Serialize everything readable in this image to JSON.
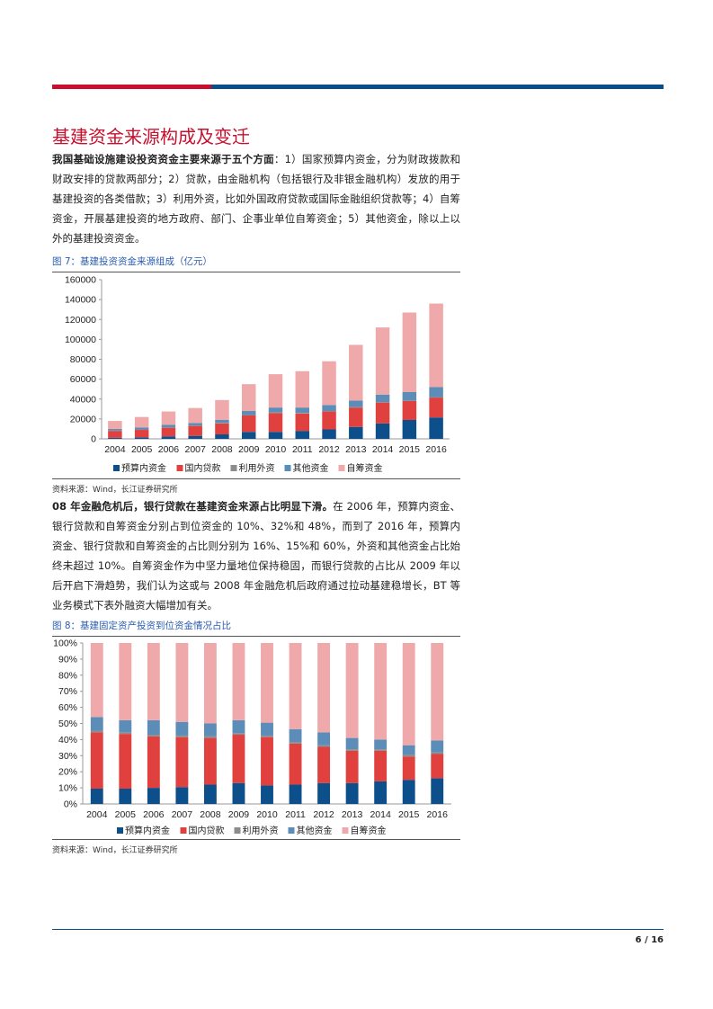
{
  "title": "基建资金来源构成及变迁",
  "para1": {
    "bold": "我国基础设施建设投资资金主要来源于五个方面",
    "rest": "：1）国家预算内资金，分为财政拨款和财政安排的贷款两部分；2）贷款，由金融机构（包括银行及非银金融机构）发放的用于基建投资的各类借款；3）利用外资，比如外国政府贷款或国际金融组织贷款等；4）自筹资金，开展基建投资的地方政府、部门、企事业单位自筹资金；5）其他资金，除以上以外的基建投资资金。"
  },
  "fig7": {
    "caption": "图 7：基建投资资金来源组成（亿元）",
    "source": "资料来源：Wind，长江证券研究所"
  },
  "para2": {
    "bold": "08 年金融危机后，银行贷款在基建资金来源占比明显下滑。",
    "rest": "在 2006 年，预算内资金、银行贷款和自筹资金分别占到位资金的 10%、32%和 48%，而到了 2016 年，预算内资金、银行贷款和自筹资金的占比则分别为 16%、15%和 60%，外资和其他资金占比始终未超过 10%。自筹资金作为中坚力量地位保持稳固，而银行贷款的占比从 2009 年以后开启下滑趋势，我们认为这或与 2008 年金融危机后政府通过拉动基建稳增长，BT 等业务模式下表外融资大幅增加有关。"
  },
  "fig8": {
    "caption": "图 8：基建固定资产投资到位资金情况占比",
    "source": "资料来源：Wind，长江证券研究所"
  },
  "page_number": "6 / 16",
  "colors": {
    "budget": "#0d4f8b",
    "loan": "#e0403e",
    "foreign": "#8c8c8c",
    "other": "#5b8db8",
    "self": "#f0a9ab"
  },
  "chart_data": [
    {
      "type": "bar",
      "stacked": true,
      "categories": [
        "2004",
        "2005",
        "2006",
        "2007",
        "2008",
        "2009",
        "2010",
        "2011",
        "2012",
        "2013",
        "2014",
        "2015",
        "2016"
      ],
      "series": [
        {
          "name": "预算内资金",
          "values": [
            1000,
            1500,
            2500,
            3000,
            4500,
            7000,
            7000,
            8000,
            9500,
            12000,
            15500,
            19000,
            21500
          ]
        },
        {
          "name": "国内贷款",
          "values": [
            7000,
            7500,
            8700,
            10000,
            11000,
            16500,
            19000,
            17500,
            18000,
            19500,
            21000,
            19000,
            20000
          ]
        },
        {
          "name": "利用外资",
          "values": [
            500,
            500,
            500,
            500,
            500,
            500,
            500,
            500,
            500,
            500,
            500,
            500,
            500
          ]
        },
        {
          "name": "其他资金",
          "values": [
            1500,
            2000,
            2500,
            2500,
            3000,
            4000,
            5000,
            5500,
            6000,
            6500,
            7500,
            8500,
            10000
          ]
        },
        {
          "name": "自筹资金",
          "values": [
            8000,
            10500,
            13300,
            15000,
            20000,
            27000,
            33500,
            36500,
            44000,
            56000,
            67500,
            80000,
            84000
          ]
        }
      ],
      "ylim": [
        0,
        160000
      ],
      "yticks": [
        "0",
        "20000",
        "40000",
        "60000",
        "80000",
        "100000",
        "120000",
        "140000",
        "160000"
      ],
      "legend": "bottom"
    },
    {
      "type": "bar",
      "stacked": true,
      "categories": [
        "2004",
        "2005",
        "2006",
        "2007",
        "2008",
        "2009",
        "2010",
        "2011",
        "2012",
        "2013",
        "2014",
        "2015",
        "2016"
      ],
      "series": [
        {
          "name": "预算内资金",
          "values": [
            9.5,
            9.5,
            10,
            10.5,
            12,
            13,
            11.5,
            12,
            13,
            13,
            14,
            15,
            16
          ]
        },
        {
          "name": "国内贷款",
          "values": [
            35,
            34,
            32,
            31,
            29,
            30,
            30,
            25.5,
            22.5,
            20,
            19,
            14.5,
            15
          ]
        },
        {
          "name": "利用外资",
          "values": [
            1,
            1,
            1,
            1,
            1,
            1,
            1,
            1,
            1,
            1,
            1,
            1,
            1
          ]
        },
        {
          "name": "其他资金",
          "values": [
            8.5,
            7.5,
            9,
            8.5,
            8,
            8,
            8,
            8,
            8,
            7,
            6,
            6,
            7.5
          ]
        },
        {
          "name": "自筹资金",
          "values": [
            46,
            48,
            48,
            49,
            50,
            48,
            49.5,
            53.5,
            55.5,
            59,
            60,
            63.5,
            60.5
          ]
        }
      ],
      "ylim": [
        0,
        100
      ],
      "yticks": [
        "0%",
        "10%",
        "20%",
        "30%",
        "40%",
        "50%",
        "60%",
        "70%",
        "80%",
        "90%",
        "100%"
      ],
      "legend": "bottom"
    }
  ]
}
